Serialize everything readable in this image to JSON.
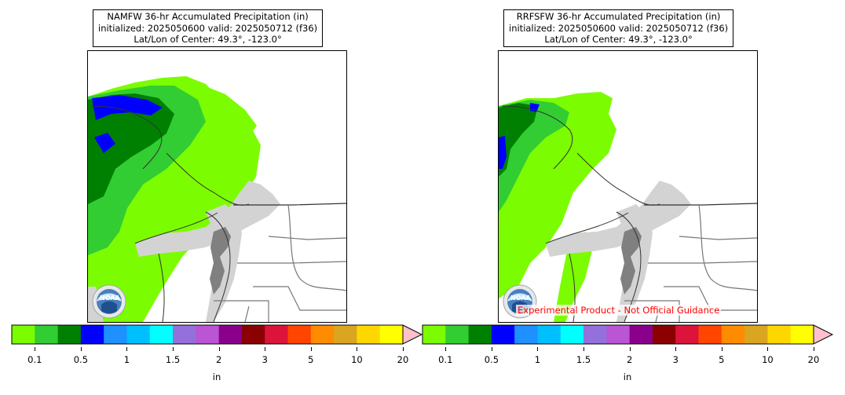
{
  "panels": [
    {
      "title_line1": "NAMFW 36-hr Accumulated Precipitation (in)",
      "title_line2": "initialized: 2025050600 valid: 2025050712 (f36)",
      "title_line3": "Lat/Lon of Center: 49.3°, -123.0°",
      "logo_text": "NOAA",
      "units": "in"
    },
    {
      "title_line1": "RRFSFW 36-hr Accumulated Precipitation (in)",
      "title_line2": "initialized: 2025050600 valid: 2025050712 (f36)",
      "title_line3": "Lat/Lon of Center: 49.3°, -123.0°",
      "logo_text": "NOAA",
      "units": "in",
      "disclaimer": "Experimental Product - Not Official Guidance"
    }
  ],
  "colorbar": {
    "colors": [
      "#7cfc00",
      "#32cd32",
      "#008000",
      "#0000ff",
      "#1e90ff",
      "#00bfff",
      "#00ffff",
      "#9370db",
      "#ba55d3",
      "#8b008b",
      "#8b0000",
      "#dc143c",
      "#ff4500",
      "#ff8c00",
      "#daa520",
      "#ffd700",
      "#ffff00"
    ],
    "extend_color": "#ffc0cb",
    "tick_labels": [
      "0.1",
      "0.5",
      "1",
      "1.5",
      "2",
      "3",
      "5",
      "10",
      "20"
    ]
  },
  "map_colors": {
    "light_green": "#7cfc00",
    "medium_green": "#32cd32",
    "dark_green": "#008000",
    "blue": "#0000ff",
    "water": "#d3d3d3",
    "deep_water": "#808080"
  }
}
